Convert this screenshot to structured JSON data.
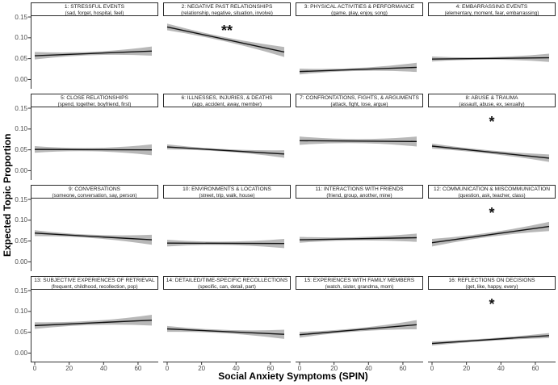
{
  "chart_data": {
    "type": "line",
    "title": "",
    "xlabel": "Social Anxiety Symptoms (SPIN)",
    "ylabel": "Expected Topic Proportion",
    "xlim": [
      0,
      68
    ],
    "ylim": [
      0,
      0.15
    ],
    "grid": "off",
    "x_ticks": [
      0,
      20,
      40,
      60
    ],
    "x_tick_labels": [
      "0",
      "20",
      "40",
      "60"
    ],
    "y_ticks": [
      0.0,
      0.05,
      0.1,
      0.15
    ],
    "y_tick_labels": [
      "0.00",
      "0.05",
      "0.10",
      "0.15"
    ],
    "colors": {
      "trend_line": "#111111",
      "ci_ribbon": "#b8b8b8",
      "axis": "#333333",
      "tick_text": "#4d4d4d"
    },
    "facets": [
      {
        "n": 1,
        "title": "1: STRESSFUL EVENTS",
        "keywords": "(sad, forget, hospital, feel)",
        "significance": "",
        "x": [
          0,
          68
        ],
        "y": [
          0.057,
          0.068
        ],
        "ci_half_width": {
          "start": 0.009,
          "mid": 0.004,
          "end": 0.011
        }
      },
      {
        "n": 2,
        "title": "2: NEGATIVE PAST RELATIONSHIPS",
        "keywords": "(relationship, negative, situation, involve)",
        "significance": "**",
        "x": [
          0,
          68
        ],
        "y": [
          0.126,
          0.066
        ],
        "ci_half_width": {
          "start": 0.008,
          "mid": 0.005,
          "end": 0.012
        }
      },
      {
        "n": 3,
        "title": "3: PHYSICAL ACTIVITIES & PERFORMANCE",
        "keywords": "(game, play, enjoy, song)",
        "significance": "",
        "x": [
          0,
          68
        ],
        "y": [
          0.019,
          0.029
        ],
        "ci_half_width": {
          "start": 0.007,
          "mid": 0.0035,
          "end": 0.011
        }
      },
      {
        "n": 4,
        "title": "4: EMBARRASSING EVENTS",
        "keywords": "(elementary, moment, fear, embarrassing)",
        "significance": "",
        "x": [
          0,
          68
        ],
        "y": [
          0.049,
          0.052
        ],
        "ci_half_width": {
          "start": 0.006,
          "mid": 0.003,
          "end": 0.01
        }
      },
      {
        "n": 5,
        "title": "5: CLOSE RELATIONSHIPS",
        "keywords": "(spend, together, boyfriend, first)",
        "significance": "",
        "x": [
          0,
          68
        ],
        "y": [
          0.051,
          0.05
        ],
        "ci_half_width": {
          "start": 0.008,
          "mid": 0.004,
          "end": 0.013
        }
      },
      {
        "n": 6,
        "title": "6: ILLNESSES, INJURIES, & DEATHS",
        "keywords": "(ago, accident, away, member)",
        "significance": "",
        "x": [
          0,
          68
        ],
        "y": [
          0.057,
          0.04
        ],
        "ci_half_width": {
          "start": 0.006,
          "mid": 0.003,
          "end": 0.009
        }
      },
      {
        "n": 7,
        "title": "7: CONFRONTATIONS, FIGHTS, & ARGUMENTS",
        "keywords": "(attack, fight, lose, argue)",
        "significance": "",
        "x": [
          0,
          68
        ],
        "y": [
          0.072,
          0.07
        ],
        "ci_half_width": {
          "start": 0.01,
          "mid": 0.005,
          "end": 0.012
        }
      },
      {
        "n": 8,
        "title": "8: ABUSE & TRAUMA",
        "keywords": "(assault, abuse, ex, sexually)",
        "significance": "*",
        "x": [
          0,
          68
        ],
        "y": [
          0.059,
          0.03
        ],
        "ci_half_width": {
          "start": 0.006,
          "mid": 0.004,
          "end": 0.009
        }
      },
      {
        "n": 9,
        "title": "9: CONVERSATIONS",
        "keywords": "(someone, conversation, say, person)",
        "significance": "",
        "x": [
          0,
          68
        ],
        "y": [
          0.069,
          0.053
        ],
        "ci_half_width": {
          "start": 0.007,
          "mid": 0.004,
          "end": 0.012
        }
      },
      {
        "n": 10,
        "title": "10: ENVIRONMENTS & LOCATIONS",
        "keywords": "(street, trip, walk, house)",
        "significance": "",
        "x": [
          0,
          68
        ],
        "y": [
          0.045,
          0.044
        ],
        "ci_half_width": {
          "start": 0.008,
          "mid": 0.004,
          "end": 0.011
        }
      },
      {
        "n": 11,
        "title": "11: INTERACTIONS WITH FRIENDS",
        "keywords": "(friend, group, another, mine)",
        "significance": "",
        "x": [
          0,
          68
        ],
        "y": [
          0.053,
          0.058
        ],
        "ci_half_width": {
          "start": 0.007,
          "mid": 0.004,
          "end": 0.01
        }
      },
      {
        "n": 12,
        "title": "12: COMMUNICATION & MISCOMMUNICATION",
        "keywords": "(question, ask, teacher, class)",
        "significance": "*",
        "x": [
          0,
          68
        ],
        "y": [
          0.046,
          0.085
        ],
        "ci_half_width": {
          "start": 0.009,
          "mid": 0.005,
          "end": 0.011
        }
      },
      {
        "n": 13,
        "title": "13: SUBJECTIVE EXPERIENCES OF RETRIEVAL",
        "keywords": "(frequent, childhood, recollection, pop)",
        "significance": "",
        "x": [
          0,
          68
        ],
        "y": [
          0.066,
          0.079
        ],
        "ci_half_width": {
          "start": 0.008,
          "mid": 0.005,
          "end": 0.013
        }
      },
      {
        "n": 14,
        "title": "14: DETAILED/TIME-SPECIFIC RECOLLECTIONS",
        "keywords": "(specific, can, detail, part)",
        "significance": "",
        "x": [
          0,
          68
        ],
        "y": [
          0.058,
          0.045
        ],
        "ci_half_width": {
          "start": 0.007,
          "mid": 0.004,
          "end": 0.011
        }
      },
      {
        "n": 15,
        "title": "15: EXPERIENCES WITH FAMILY MEMBERS",
        "keywords": "(watch, sister, grandma, mom)",
        "significance": "",
        "x": [
          0,
          68
        ],
        "y": [
          0.044,
          0.068
        ],
        "ci_half_width": {
          "start": 0.007,
          "mid": 0.004,
          "end": 0.011
        }
      },
      {
        "n": 16,
        "title": "16: REFLECTIONS ON DECISIONS",
        "keywords": "(get, like, happy, every)",
        "significance": "*",
        "x": [
          0,
          68
        ],
        "y": [
          0.023,
          0.042
        ],
        "ci_half_width": {
          "start": 0.005,
          "mid": 0.003,
          "end": 0.006
        }
      }
    ]
  }
}
